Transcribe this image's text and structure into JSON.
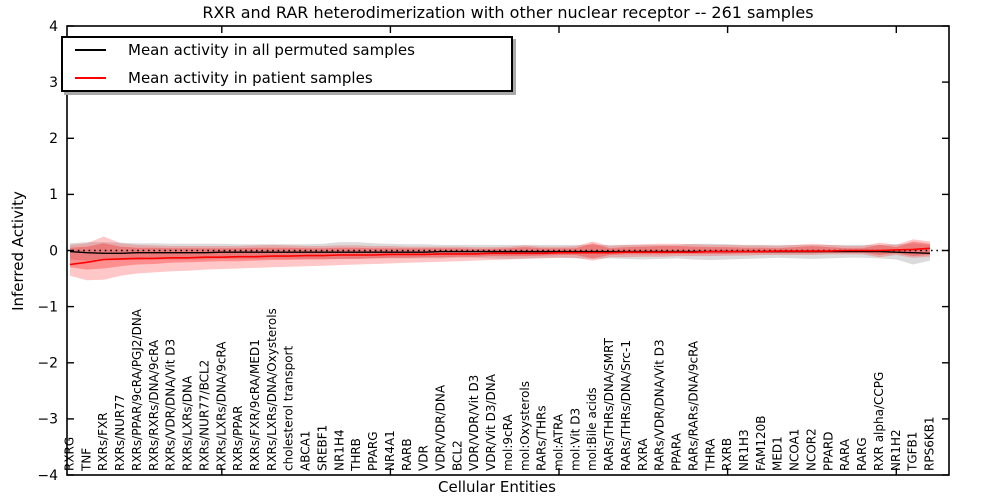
{
  "title": "RXR and RAR heterodimerization with other nuclear receptor -- 261 samples",
  "legend": {
    "items": [
      {
        "label": "Mean activity in all permuted samples",
        "color": "#000000"
      },
      {
        "label": "Mean activity in patient samples",
        "color": "#ff0000"
      }
    ]
  },
  "chart_data": {
    "type": "line",
    "title": "RXR and RAR heterodimerization with other nuclear receptor -- 261 samples",
    "xlabel": "Cellular Entities",
    "ylabel": "Inferred Activity",
    "ylim": [
      -4,
      4
    ],
    "grid": false,
    "legend_position": "upper left",
    "yticks": [
      {
        "v": 4,
        "label": "4"
      },
      {
        "v": 3,
        "label": "3"
      },
      {
        "v": 2,
        "label": "2"
      },
      {
        "v": 1,
        "label": "1"
      },
      {
        "v": 0,
        "label": "0"
      },
      {
        "v": -1,
        "label": "−1"
      },
      {
        "v": -2,
        "label": "−2"
      },
      {
        "v": -3,
        "label": "−3"
      },
      {
        "v": -4,
        "label": "−4"
      }
    ],
    "xtick_indices": [
      9,
      19,
      29,
      39,
      49
    ],
    "categories": [
      "RXRG",
      "TNF",
      "RXRs/FXR",
      "RXRs/NUR77",
      "RXRs/PPAR/9cRA/PGJ2/DNA",
      "RXRs/RXRs/DNA/9cRA",
      "RXRs/VDR/DNA/Vit D3",
      "RXRs/LXRs/DNA",
      "RXRs/NUR77/BCL2",
      "RXRs/LXRs/DNA/9cRA",
      "RXRs/PPAR",
      "RXRs/FXR/9cRA/MED1",
      "RXRs/LXRs/DNA/Oxysterols",
      "cholesterol transport",
      "ABCA1",
      "SREBF1",
      "NR1H4",
      "THRB",
      "PPARG",
      "NR4A1",
      "RARB",
      "VDR",
      "VDR/VDR/DNA",
      "BCL2",
      "VDR/VDR/Vit D3",
      "VDR/Vit D3/DNA",
      "mol:9cRA",
      "mol:Oxysterols",
      "RARs/THRs",
      "mol:ATRA",
      "mol:Vit D3",
      "mol:Bile acids",
      "RARs/THRs/DNA/SMRT",
      "RARs/THRs/DNA/Src-1",
      "RXRA",
      "RARs/VDR/DNA/Vit D3",
      "PPARA",
      "RARs/RARs/DNA/9cRA",
      "THRA",
      "RXRB",
      "NR1H3",
      "FAM120B",
      "MED1",
      "NCOA1",
      "NCOR2",
      "PPARD",
      "RARA",
      "RARG",
      "RXR alpha/CCPG",
      "NR1H2",
      "TGFB1",
      "RPS6KB1"
    ],
    "zero_line": {
      "y": 0,
      "color": "#000000",
      "style": "dotted"
    },
    "series": [
      {
        "name": "Mean activity in all permuted samples",
        "color": "#000000",
        "style": "solid",
        "values": [
          -0.02,
          -0.04,
          -0.05,
          -0.05,
          -0.04,
          -0.04,
          -0.04,
          -0.04,
          -0.04,
          -0.03,
          -0.03,
          -0.03,
          -0.03,
          -0.03,
          -0.03,
          -0.03,
          -0.03,
          -0.03,
          -0.03,
          -0.03,
          -0.03,
          -0.03,
          -0.02,
          -0.02,
          -0.02,
          -0.02,
          -0.02,
          -0.02,
          -0.02,
          -0.02,
          -0.02,
          -0.02,
          -0.02,
          -0.02,
          -0.02,
          -0.02,
          -0.02,
          -0.02,
          -0.02,
          -0.02,
          -0.02,
          -0.02,
          -0.02,
          -0.02,
          -0.02,
          -0.02,
          -0.02,
          -0.02,
          -0.02,
          -0.03,
          -0.04,
          -0.05
        ]
      },
      {
        "name": "Mean activity in patient samples",
        "color": "#ff0000",
        "style": "solid",
        "values": [
          -0.25,
          -0.21,
          -0.16,
          -0.15,
          -0.14,
          -0.14,
          -0.13,
          -0.13,
          -0.12,
          -0.12,
          -0.11,
          -0.11,
          -0.1,
          -0.1,
          -0.09,
          -0.09,
          -0.08,
          -0.08,
          -0.08,
          -0.07,
          -0.07,
          -0.07,
          -0.06,
          -0.06,
          -0.06,
          -0.05,
          -0.05,
          -0.05,
          -0.05,
          -0.04,
          -0.04,
          -0.04,
          -0.04,
          -0.03,
          -0.03,
          -0.03,
          -0.03,
          -0.03,
          -0.02,
          -0.02,
          -0.02,
          -0.02,
          -0.01,
          -0.01,
          -0.01,
          -0.01,
          0.0,
          0.0,
          0.0,
          0.01,
          0.02,
          0.04
        ]
      }
    ],
    "bands": [
      {
        "name": "permuted-samples-range",
        "color": "#000000",
        "opacity": 0.14,
        "upper": [
          0.13,
          0.15,
          0.15,
          0.14,
          0.13,
          0.13,
          0.12,
          0.12,
          0.12,
          0.12,
          0.11,
          0.11,
          0.11,
          0.11,
          0.11,
          0.12,
          0.15,
          0.15,
          0.13,
          0.12,
          0.11,
          0.11,
          0.1,
          0.1,
          0.1,
          0.1,
          0.1,
          0.1,
          0.1,
          0.1,
          0.1,
          0.1,
          0.1,
          0.1,
          0.1,
          0.1,
          0.1,
          0.12,
          0.12,
          0.11,
          0.1,
          0.1,
          0.1,
          0.1,
          0.1,
          0.1,
          0.1,
          0.1,
          0.1,
          0.11,
          0.13,
          0.1
        ],
        "lower": [
          -0.16,
          -0.18,
          -0.18,
          -0.17,
          -0.17,
          -0.16,
          -0.16,
          -0.16,
          -0.16,
          -0.15,
          -0.15,
          -0.15,
          -0.15,
          -0.15,
          -0.15,
          -0.15,
          -0.15,
          -0.15,
          -0.14,
          -0.14,
          -0.14,
          -0.14,
          -0.14,
          -0.13,
          -0.13,
          -0.14,
          -0.15,
          -0.14,
          -0.13,
          -0.13,
          -0.14,
          -0.15,
          -0.14,
          -0.15,
          -0.16,
          -0.15,
          -0.14,
          -0.16,
          -0.17,
          -0.16,
          -0.15,
          -0.14,
          -0.13,
          -0.14,
          -0.15,
          -0.14,
          -0.13,
          -0.13,
          -0.14,
          -0.16,
          -0.25,
          -0.18
        ]
      },
      {
        "name": "patient-samples-range-outer",
        "color": "#ff0000",
        "opacity": 0.22,
        "upper": [
          0.1,
          0.13,
          0.25,
          0.13,
          0.1,
          0.09,
          0.08,
          0.08,
          0.08,
          0.08,
          0.08,
          0.09,
          0.1,
          0.09,
          0.08,
          0.08,
          0.09,
          0.09,
          0.08,
          0.08,
          0.07,
          0.07,
          0.07,
          0.07,
          0.06,
          0.06,
          0.07,
          0.09,
          0.07,
          0.07,
          0.08,
          0.16,
          0.08,
          0.1,
          0.11,
          0.12,
          0.12,
          0.11,
          0.1,
          0.1,
          0.09,
          0.09,
          0.08,
          0.1,
          0.12,
          0.1,
          0.08,
          0.08,
          0.14,
          0.1,
          0.2,
          0.16
        ],
        "lower": [
          -0.45,
          -0.53,
          -0.52,
          -0.45,
          -0.41,
          -0.39,
          -0.37,
          -0.36,
          -0.34,
          -0.33,
          -0.32,
          -0.31,
          -0.3,
          -0.29,
          -0.28,
          -0.27,
          -0.26,
          -0.25,
          -0.24,
          -0.23,
          -0.22,
          -0.21,
          -0.2,
          -0.19,
          -0.18,
          -0.17,
          -0.16,
          -0.15,
          -0.14,
          -0.13,
          -0.13,
          -0.18,
          -0.12,
          -0.12,
          -0.11,
          -0.11,
          -0.1,
          -0.1,
          -0.1,
          -0.09,
          -0.09,
          -0.08,
          -0.08,
          -0.08,
          -0.08,
          -0.07,
          -0.07,
          -0.07,
          -0.12,
          -0.08,
          -0.13,
          -0.11
        ]
      },
      {
        "name": "patient-samples-range-inner",
        "color": "#ff0000",
        "opacity": 0.28,
        "upper": [
          0.05,
          0.07,
          0.13,
          0.07,
          0.05,
          0.05,
          0.04,
          0.04,
          0.04,
          0.04,
          0.04,
          0.05,
          0.05,
          0.05,
          0.04,
          0.04,
          0.05,
          0.05,
          0.04,
          0.04,
          0.04,
          0.04,
          0.04,
          0.04,
          0.03,
          0.03,
          0.04,
          0.06,
          0.04,
          0.04,
          0.04,
          0.13,
          0.04,
          0.06,
          0.07,
          0.08,
          0.08,
          0.07,
          0.06,
          0.06,
          0.05,
          0.05,
          0.04,
          0.06,
          0.08,
          0.06,
          0.04,
          0.04,
          0.1,
          0.06,
          0.16,
          0.12
        ],
        "lower": [
          -0.3,
          -0.34,
          -0.32,
          -0.28,
          -0.25,
          -0.24,
          -0.22,
          -0.21,
          -0.2,
          -0.19,
          -0.19,
          -0.18,
          -0.17,
          -0.17,
          -0.16,
          -0.16,
          -0.15,
          -0.15,
          -0.14,
          -0.13,
          -0.13,
          -0.12,
          -0.12,
          -0.11,
          -0.11,
          -0.1,
          -0.1,
          -0.1,
          -0.09,
          -0.08,
          -0.08,
          -0.14,
          -0.08,
          -0.07,
          -0.07,
          -0.07,
          -0.06,
          -0.06,
          -0.06,
          -0.06,
          -0.05,
          -0.05,
          -0.05,
          -0.05,
          -0.05,
          -0.04,
          -0.04,
          -0.04,
          -0.08,
          -0.05,
          -0.1,
          -0.08
        ]
      }
    ]
  }
}
